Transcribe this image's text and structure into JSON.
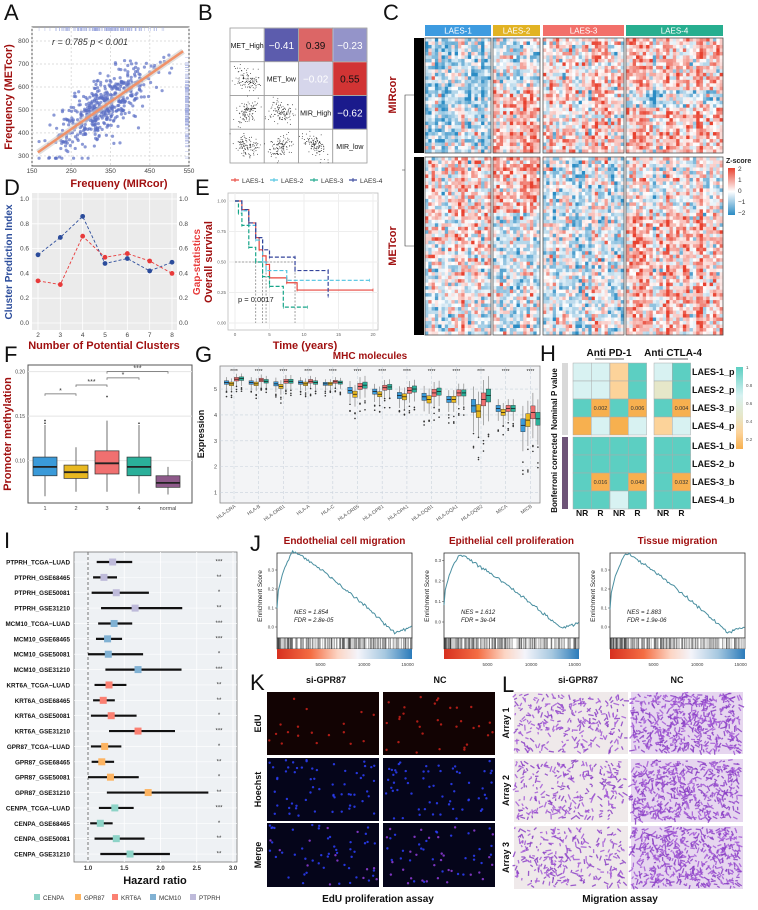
{
  "panel_labels": [
    "A",
    "B",
    "C",
    "D",
    "E",
    "F",
    "G",
    "H",
    "I",
    "J",
    "K",
    "L"
  ],
  "chart_data": [
    {
      "panel": "A",
      "type": "scatter",
      "annotation": "r = 0.785  p < 0.001",
      "xlabel": "Frequeny (MIRcor)",
      "ylabel": "Frequency (METcor)",
      "xlim": [
        150,
        550
      ],
      "ylim": [
        256,
        861
      ],
      "xticks": [
        "150",
        "250",
        "350",
        "450",
        "550"
      ],
      "yticks": [
        "300",
        "400",
        "500",
        "600",
        "700",
        "800"
      ],
      "r": 0.785,
      "regression": {
        "slope": 1.19,
        "intercept": 119
      },
      "colors": {
        "points": "#5b6fc4",
        "fit": "#f0926a"
      }
    },
    {
      "panel": "B",
      "type": "heatmap",
      "variables": [
        "MET_High",
        "MET_low",
        "MIR_High",
        "MIR_low"
      ],
      "cells": [
        {
          "row": 0,
          "col": 1,
          "value": -0.41,
          "label": "−0.41"
        },
        {
          "row": 0,
          "col": 2,
          "value": 0.39,
          "label": "0.39"
        },
        {
          "row": 0,
          "col": 3,
          "value": -0.23,
          "label": "−0.23"
        },
        {
          "row": 1,
          "col": 2,
          "value": -0.02,
          "label": "−0.02"
        },
        {
          "row": 1,
          "col": 3,
          "value": 0.55,
          "label": "0.55"
        },
        {
          "row": 2,
          "col": 3,
          "value": -0.62,
          "label": "−0.62"
        }
      ],
      "colors": {
        "negative": "#1a1a8c",
        "positive": "#cc1f1f"
      }
    },
    {
      "panel": "C",
      "type": "heatmap",
      "column_groups": [
        {
          "name": "LAES-1",
          "color": "#3d9be0"
        },
        {
          "name": "LAES-2",
          "color": "#e2b323"
        },
        {
          "name": "LAES-3",
          "color": "#f2706a"
        },
        {
          "name": "LAES-4",
          "color": "#27ae8f"
        }
      ],
      "row_groups": [
        "MIRcor",
        "METcor"
      ],
      "legend_title": "Z-score",
      "legend_ticks": [
        "2",
        "1",
        "0",
        "−1",
        "−2"
      ],
      "zlim": [
        -2,
        2
      ],
      "colors": {
        "low": "#2b8cc4",
        "mid": "#ffffff",
        "high": "#e8412f"
      }
    },
    {
      "panel": "D",
      "type": "line",
      "x": [
        2,
        3,
        4,
        5,
        6,
        7,
        8
      ],
      "xticks": [
        "2",
        "3",
        "4",
        "5",
        "6",
        "7",
        "8"
      ],
      "xlabel": "Number of Potential Clusters",
      "ylim": [
        0,
        1
      ],
      "yticks": [
        "0.0",
        "0.2",
        "0.4",
        "0.6",
        "0.8",
        "1.0"
      ],
      "series": [
        {
          "name": "Cluster Prediction Index",
          "axis": "left",
          "color": "#2b4c9b",
          "values": [
            0.55,
            0.69,
            0.86,
            0.48,
            0.52,
            0.42,
            0.49
          ]
        },
        {
          "name": "Gap-statistics",
          "axis": "right",
          "color": "#e83a3a",
          "values": [
            0.34,
            0.31,
            0.7,
            0.53,
            0.56,
            0.5,
            0.4
          ]
        }
      ]
    },
    {
      "panel": "E",
      "type": "line",
      "subtype": "kaplan-meier",
      "xlabel": "Time (years)",
      "ylabel": "Overall survival",
      "xlim": [
        0,
        20
      ],
      "ylim": [
        0,
        1
      ],
      "xticks": [
        "0",
        "5",
        "10",
        "15",
        "20"
      ],
      "yticks": [
        "0.00",
        "0.25",
        "0.50",
        "0.75",
        "1.00"
      ],
      "annotation": "p = 0.0017",
      "legend_position": "top",
      "series": [
        {
          "name": "LAES-1",
          "color": "#e8453c",
          "dashed": false,
          "median": 4.5,
          "steps": [
            [
              0,
              1
            ],
            [
              1,
              0.93
            ],
            [
              2,
              0.82
            ],
            [
              3,
              0.7
            ],
            [
              3.5,
              0.6
            ],
            [
              4,
              0.55
            ],
            [
              4.5,
              0.48
            ],
            [
              5,
              0.37
            ],
            [
              7.5,
              0.33
            ],
            [
              9,
              0.27
            ],
            [
              20,
              0.27
            ]
          ]
        },
        {
          "name": "LAES-2",
          "color": "#4dc3e0",
          "dashed": true,
          "median": 4,
          "steps": [
            [
              0,
              1
            ],
            [
              1,
              0.92
            ],
            [
              2,
              0.8
            ],
            [
              3,
              0.68
            ],
            [
              4,
              0.5
            ],
            [
              4.5,
              0.43
            ],
            [
              7.5,
              0.35
            ],
            [
              19.5,
              0.35
            ]
          ]
        },
        {
          "name": "LAES-3",
          "color": "#17a589",
          "dashed": true,
          "median": 3,
          "steps": [
            [
              0,
              1
            ],
            [
              0.5,
              0.9
            ],
            [
              1,
              0.8
            ],
            [
              2,
              0.62
            ],
            [
              3,
              0.5
            ],
            [
              4,
              0.38
            ],
            [
              5,
              0.3
            ],
            [
              7,
              0.13
            ],
            [
              10.5,
              0.13
            ]
          ]
        },
        {
          "name": "LAES-4",
          "color": "#34449b",
          "dashed": true,
          "median": 8.7,
          "steps": [
            [
              0,
              1
            ],
            [
              1,
              0.93
            ],
            [
              2,
              0.82
            ],
            [
              3,
              0.7
            ],
            [
              4,
              0.6
            ],
            [
              5,
              0.54
            ],
            [
              8.7,
              0.54
            ],
            [
              8.7,
              0.43
            ],
            [
              13.5,
              0.43
            ],
            [
              13.5,
              0.22
            ]
          ]
        }
      ]
    },
    {
      "panel": "F",
      "type": "box",
      "categories": [
        "1",
        "2",
        "3",
        "4",
        "normal"
      ],
      "ylabel": "Promoter methylation",
      "yticks": [
        "0.10",
        "0.15",
        "0.20"
      ],
      "ylim": [
        0.052,
        0.207
      ],
      "colors": [
        "#3a9ad9",
        "#e8b820",
        "#f07070",
        "#2ab09a",
        "#8e5a8a"
      ],
      "boxes": [
        {
          "min": 0.06,
          "q1": 0.083,
          "median": 0.093,
          "q3": 0.104,
          "max": 0.14,
          "outliers": [
            0.142,
            0.145
          ]
        },
        {
          "min": 0.065,
          "q1": 0.08,
          "median": 0.087,
          "q3": 0.095,
          "max": 0.115,
          "outliers": []
        },
        {
          "min": 0.065,
          "q1": 0.085,
          "median": 0.097,
          "q3": 0.111,
          "max": 0.145,
          "outliers": [
            0.172
          ]
        },
        {
          "min": 0.063,
          "q1": 0.083,
          "median": 0.093,
          "q3": 0.104,
          "max": 0.14,
          "outliers": [
            0.142
          ]
        },
        {
          "min": 0.062,
          "q1": 0.07,
          "median": 0.075,
          "q3": 0.083,
          "max": 0.093,
          "outliers": []
        }
      ],
      "comparisons": [
        {
          "from": 0,
          "to": 1,
          "level": 0.175,
          "label": "*"
        },
        {
          "from": 1,
          "to": 2,
          "level": 0.185,
          "label": "***"
        },
        {
          "from": 2,
          "to": 3,
          "level": 0.193,
          "label": "*"
        },
        {
          "from": 2,
          "to": 4,
          "level": 0.2,
          "label": "***"
        }
      ]
    },
    {
      "panel": "G",
      "type": "box",
      "title": "MHC molecules",
      "ylabel": "Expression",
      "yticks": [
        "1",
        "2",
        "3",
        "4",
        "5"
      ],
      "ylim": [
        0.6,
        5.85
      ],
      "categories": [
        "HLA-DRA",
        "HLA-B",
        "HLA-DRB1",
        "HLA-A",
        "HLA-C",
        "HLA-DRB5",
        "HLA-DPB1",
        "HLA-DPA1",
        "HLA-DQB1",
        "HLA-DQA1",
        "HLA-DQB2",
        "MICA",
        "MICB"
      ],
      "groups": [
        {
          "name": "LAES-1",
          "color": "#3a9ad9"
        },
        {
          "name": "LAES-2",
          "color": "#e8b820"
        },
        {
          "name": "LAES-3",
          "color": "#f07070"
        },
        {
          "name": "LAES-4",
          "color": "#2ab09a"
        }
      ],
      "medians": [
        [
          5.25,
          5.2,
          5.38,
          5.4
        ],
        [
          5.25,
          5.2,
          5.35,
          5.3
        ],
        [
          5.2,
          5.1,
          5.3,
          5.3
        ],
        [
          5.25,
          5.2,
          5.3,
          5.25
        ],
        [
          5.2,
          5.2,
          5.28,
          5.25
        ],
        [
          4.95,
          4.8,
          5.1,
          5.15
        ],
        [
          4.9,
          4.8,
          5.05,
          5.08
        ],
        [
          4.75,
          4.7,
          4.95,
          5.0
        ],
        [
          4.7,
          4.6,
          4.85,
          4.9
        ],
        [
          4.6,
          4.6,
          4.85,
          4.85
        ],
        [
          4.35,
          4.15,
          4.6,
          4.75
        ],
        [
          4.25,
          4.1,
          4.25,
          4.25
        ],
        [
          3.6,
          3.8,
          4.1,
          3.85
        ]
      ],
      "iqr_half": [
        0.07,
        0.07,
        0.08,
        0.07,
        0.06,
        0.12,
        0.1,
        0.12,
        0.14,
        0.12,
        0.25,
        0.12,
        0.25
      ],
      "significance": [
        "****",
        "****",
        "****",
        "****",
        "****",
        "****",
        "****",
        "****",
        "****",
        "****",
        "****",
        "****",
        "****"
      ]
    },
    {
      "panel": "H",
      "type": "heatmap",
      "titles": [
        "Anti PD-1",
        "Anti CTLA-4"
      ],
      "column_labels": [
        "NR",
        "R",
        "NR",
        "R",
        "NR",
        "R"
      ],
      "row_labels": [
        "LAES-1_p",
        "LAES-2_p",
        "LAES-3_p",
        "LAES-4_p",
        "LAES-1_b",
        "LAES-2_b",
        "LAES-3_b",
        "LAES-4_b"
      ],
      "row_groups": [
        {
          "label": "Nominal P value",
          "color": "#d9d9d9"
        },
        {
          "label": "Bonferroni corrected",
          "color": "#6e5478"
        }
      ],
      "values": [
        [
          0.65,
          0.65,
          0.25,
          0.9,
          0.65,
          0.9
        ],
        [
          0.65,
          0.65,
          0.25,
          0.9,
          0.45,
          0.9
        ],
        [
          0.9,
          0.002,
          0.9,
          0.006,
          0.9,
          0.004
        ],
        [
          0.1,
          0.65,
          0.1,
          0.65,
          0.25,
          0.65
        ],
        [
          0.9,
          0.9,
          0.9,
          0.9,
          0.9,
          0.9
        ],
        [
          0.9,
          0.9,
          0.9,
          0.9,
          0.9,
          0.9
        ],
        [
          0.9,
          0.016,
          0.9,
          0.048,
          0.9,
          0.032
        ],
        [
          0.9,
          0.9,
          0.65,
          0.9,
          0.9,
          0.9
        ]
      ],
      "cell_text": [
        [
          "",
          "",
          "",
          "",
          "",
          ""
        ],
        [
          "",
          "",
          "",
          "",
          "",
          ""
        ],
        [
          "",
          "0.002",
          "",
          "0.006",
          "",
          "0.004"
        ],
        [
          "",
          "",
          "",
          "",
          "",
          ""
        ],
        [
          "",
          "",
          "",
          "",
          "",
          ""
        ],
        [
          "",
          "",
          "",
          "",
          "",
          ""
        ],
        [
          "",
          "0.016",
          "",
          "0.048",
          "",
          "0.032"
        ],
        [
          "",
          "",
          "",
          "",
          "",
          ""
        ]
      ],
      "colorbar_ticks": [
        "1",
        "0.8",
        "0.6",
        "0.4",
        "0.2"
      ]
    },
    {
      "panel": "I",
      "type": "forest",
      "xlabel": "Hazard ratio",
      "xticks": [
        "1.0",
        "1.5",
        "2.0",
        "2.5",
        "3.0"
      ],
      "xlim": [
        0.95,
        3.07
      ],
      "legend": [
        {
          "name": "CENPA",
          "color": "#8dd3c7"
        },
        {
          "name": "GPR87",
          "color": "#fdb462"
        },
        {
          "name": "KRT6A",
          "color": "#fb8072"
        },
        {
          "name": "MCM10",
          "color": "#80b1d3"
        },
        {
          "name": "PTPRH",
          "color": "#bebada"
        }
      ],
      "rows": [
        {
          "label": "PTPRH_TCGA−LUAD",
          "gene": "PTPRH",
          "hr": 1.34,
          "lo": 1.12,
          "hi": 1.61,
          "sig": "***"
        },
        {
          "label": "PTPRH_GSE68465",
          "gene": "PTPRH",
          "hr": 1.22,
          "lo": 1.07,
          "hi": 1.4,
          "sig": "**"
        },
        {
          "label": "PTPRH_GSE50081",
          "gene": "PTPRH",
          "hr": 1.39,
          "lo": 1.05,
          "hi": 1.84,
          "sig": "*"
        },
        {
          "label": "PTPRH_GSE31210",
          "gene": "PTPRH",
          "hr": 1.65,
          "lo": 1.18,
          "hi": 2.3,
          "sig": "**"
        },
        {
          "label": "MCM10_TCGA−LUAD",
          "gene": "MCM10",
          "hr": 1.36,
          "lo": 1.14,
          "hi": 1.61,
          "sig": "***"
        },
        {
          "label": "MCM10_GSE68465",
          "gene": "MCM10",
          "hr": 1.27,
          "lo": 1.11,
          "hi": 1.47,
          "sig": "***"
        },
        {
          "label": "MCM10_GSE50081",
          "gene": "MCM10",
          "hr": 1.28,
          "lo": 1.0,
          "hi": 1.76,
          "sig": "*"
        },
        {
          "label": "MCM10_GSE31210",
          "gene": "MCM10",
          "hr": 1.69,
          "lo": 1.24,
          "hi": 2.29,
          "sig": "***"
        },
        {
          "label": "KRT6A_TCGA−LUAD",
          "gene": "KRT6A",
          "hr": 1.29,
          "lo": 1.09,
          "hi": 1.53,
          "sig": "**"
        },
        {
          "label": "KRT6A_GSE68465",
          "gene": "KRT6A",
          "hr": 1.21,
          "lo": 1.07,
          "hi": 1.37,
          "sig": "**"
        },
        {
          "label": "KRT6A_GSE50081",
          "gene": "KRT6A",
          "hr": 1.32,
          "lo": 1.04,
          "hi": 1.67,
          "sig": "*"
        },
        {
          "label": "KRT6A_GSE31210",
          "gene": "KRT6A",
          "hr": 1.69,
          "lo": 1.29,
          "hi": 2.2,
          "sig": "***"
        },
        {
          "label": "GPR87_TCGA−LUAD",
          "gene": "GPR87",
          "hr": 1.23,
          "lo": 1.04,
          "hi": 1.46,
          "sig": "*"
        },
        {
          "label": "GPR87_GSE68465",
          "gene": "GPR87",
          "hr": 1.19,
          "lo": 1.05,
          "hi": 1.36,
          "sig": "**"
        },
        {
          "label": "GPR87_GSE50081",
          "gene": "GPR87",
          "hr": 1.31,
          "lo": 1.0,
          "hi": 1.7,
          "sig": "*"
        },
        {
          "label": "GPR87_GSE31210",
          "gene": "GPR87",
          "hr": 1.83,
          "lo": 1.26,
          "hi": 2.66,
          "sig": "**"
        },
        {
          "label": "CENPA_TCGA−LUAD",
          "gene": "CENPA",
          "hr": 1.37,
          "lo": 1.15,
          "hi": 1.63,
          "sig": "***"
        },
        {
          "label": "CENPA_GSE68465",
          "gene": "CENPA",
          "hr": 1.17,
          "lo": 1.03,
          "hi": 1.34,
          "sig": "*"
        },
        {
          "label": "CENPA_GSE50081",
          "gene": "CENPA",
          "hr": 1.39,
          "lo": 1.09,
          "hi": 1.78,
          "sig": "**"
        },
        {
          "label": "CENPA_GSE31210",
          "gene": "CENPA",
          "hr": 1.58,
          "lo": 1.17,
          "hi": 2.13,
          "sig": "**"
        }
      ]
    },
    {
      "panel": "J",
      "type": "line",
      "subtype": "gsea",
      "title": "Endothelial cell migration",
      "ylabel": "Enrichment Score",
      "nes": "NES = 1.854",
      "fdr": "FDR = 2.8e-05",
      "peak_es": 0.4,
      "yticks": [
        "0.0",
        "0.1",
        "0.2",
        "0.3",
        "0.4"
      ],
      "xticks": [
        "5000",
        "10000",
        "15000"
      ],
      "xlim": [
        0,
        15500
      ]
    },
    {
      "panel": "J",
      "type": "line",
      "subtype": "gsea",
      "title": "Epithelial cell proliferation",
      "ylabel": "Enrichment Score",
      "nes": "NES = 1.612",
      "fdr": "FDR = 3e-04",
      "peak_es": 0.33,
      "yticks": [
        "0.0",
        "0.1",
        "0.2",
        "0.3"
      ],
      "xticks": [
        "5000",
        "10000",
        "15000"
      ],
      "xlim": [
        0,
        15500
      ]
    },
    {
      "panel": "J",
      "type": "line",
      "subtype": "gsea",
      "title": "Tissue migration",
      "ylabel": "Enrichment Score",
      "nes": "NES = 1.883",
      "fdr": "FDR = 1.9e-06",
      "peak_es": 0.39,
      "yticks": [
        "0.0",
        "0.1",
        "0.2",
        "0.3"
      ],
      "xticks": [
        "5000",
        "10000",
        "15000"
      ],
      "xlim": [
        0,
        15500
      ]
    }
  ],
  "panel_K": {
    "columns": [
      "si-GPR87",
      "NC"
    ],
    "rows": [
      "EdU",
      "Hoechst",
      "Merge"
    ],
    "caption": "EdU proliferation assay"
  },
  "panel_L": {
    "columns": [
      "si-GPR87",
      "NC"
    ],
    "rows": [
      "Array 1",
      "Array 2",
      "Array 3"
    ],
    "caption": "Migration assay"
  }
}
